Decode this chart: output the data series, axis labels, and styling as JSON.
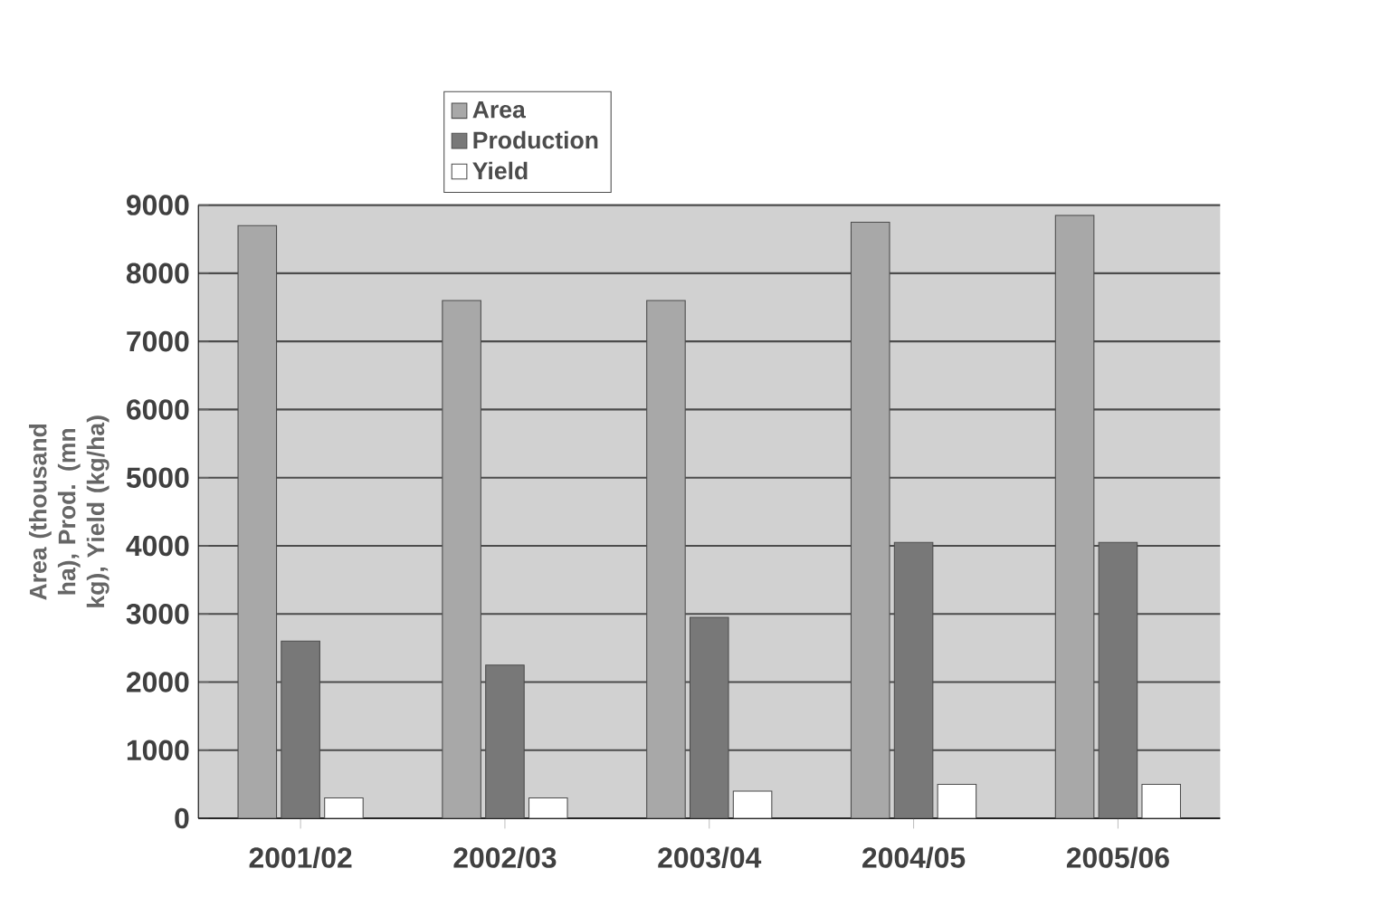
{
  "chart_data": {
    "type": "bar",
    "ylabel": "Area (thousand ha), Prod. (mn kg), Yield (kg/ha)",
    "categories": [
      "2001/02",
      "2002/03",
      "2003/04",
      "2004/05",
      "2005/06"
    ],
    "series": [
      {
        "name": "Area",
        "color": "#a8a8a8",
        "values": [
          8700,
          7600,
          7600,
          8750,
          8850
        ]
      },
      {
        "name": "Production",
        "color": "#787878",
        "values": [
          2600,
          2250,
          2950,
          4050,
          4050
        ]
      },
      {
        "name": "Yield",
        "color": "#ffffff",
        "values": [
          300,
          300,
          400,
          500,
          500
        ]
      }
    ],
    "ylim": [
      0,
      9000
    ],
    "yticks": [
      0,
      1000,
      2000,
      3000,
      4000,
      5000,
      6000,
      7000,
      8000,
      9000
    ],
    "grid": "y",
    "legend": "top"
  }
}
